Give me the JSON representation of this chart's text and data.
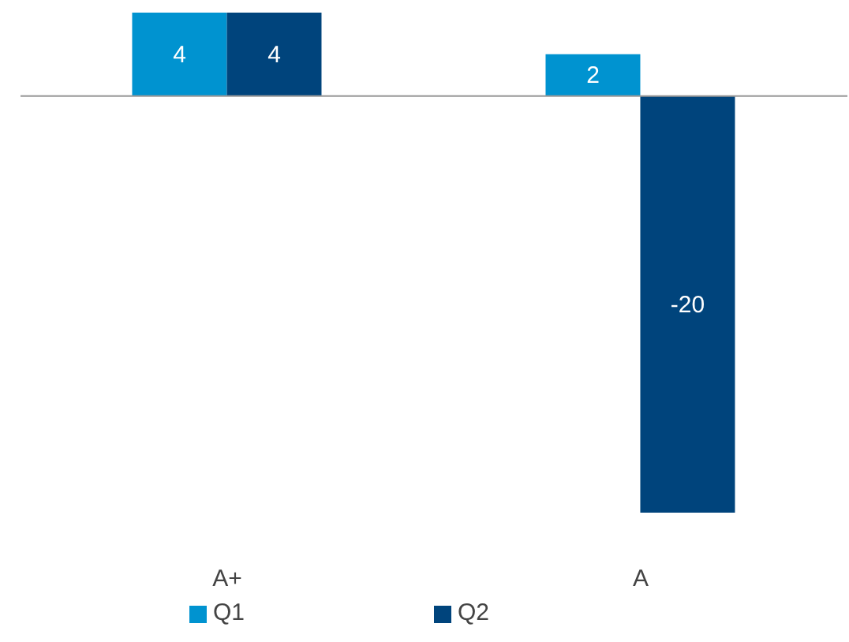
{
  "chart_data": {
    "type": "bar",
    "categories": [
      "A+",
      "A"
    ],
    "series": [
      {
        "name": "Q1",
        "color": "#0093d0",
        "values": [
          4,
          2
        ]
      },
      {
        "name": "Q2",
        "color": "#00447c",
        "values": [
          4,
          -20
        ]
      }
    ],
    "data_labels": true,
    "legend": "bottom",
    "grid": false
  }
}
